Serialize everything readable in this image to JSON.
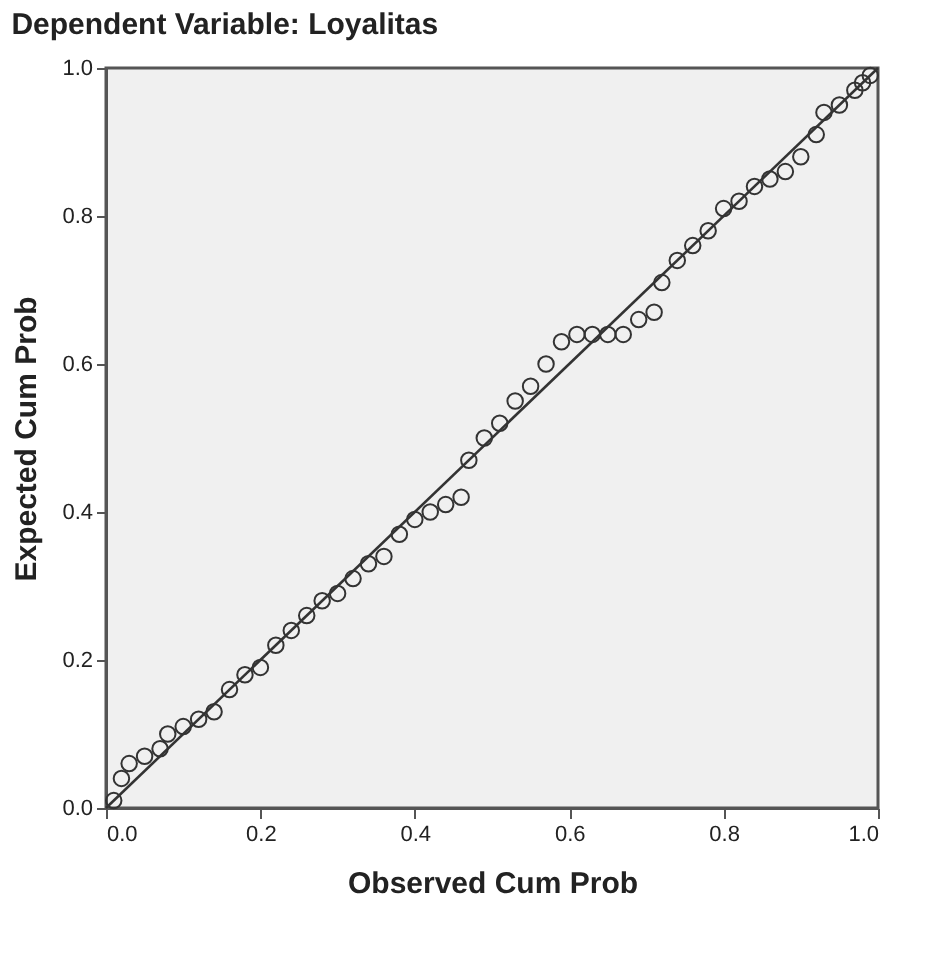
{
  "chart_data": {
    "type": "scatter",
    "title": "Dependent Variable: Loyalitas",
    "xlabel": "Observed Cum Prob",
    "ylabel": "Expected Cum Prob",
    "xlim": [
      0,
      1
    ],
    "ylim": [
      0,
      1
    ],
    "xticks": [
      {
        "value": 0,
        "label": "0.0"
      },
      {
        "value": 0.2,
        "label": "0.2"
      },
      {
        "value": 0.4,
        "label": "0.4"
      },
      {
        "value": 0.6,
        "label": "0.6"
      },
      {
        "value": 0.8,
        "label": "0.8"
      },
      {
        "value": 1,
        "label": "1.0"
      }
    ],
    "yticks": [
      {
        "value": 0,
        "label": "0.0"
      },
      {
        "value": 0.2,
        "label": "0.2"
      },
      {
        "value": 0.4,
        "label": "0.4"
      },
      {
        "value": 0.6,
        "label": "0.6"
      },
      {
        "value": 0.8,
        "label": "0.8"
      },
      {
        "value": 1,
        "label": "1.0"
      }
    ],
    "grid": false,
    "series": [
      {
        "type": "scatter",
        "marker": "circle",
        "color": "#333333",
        "x": [
          0.01,
          0.02,
          0.03,
          0.05,
          0.07,
          0.08,
          0.1,
          0.12,
          0.14,
          0.16,
          0.18,
          0.2,
          0.22,
          0.24,
          0.26,
          0.28,
          0.3,
          0.32,
          0.34,
          0.36,
          0.38,
          0.4,
          0.42,
          0.44,
          0.46,
          0.47,
          0.49,
          0.51,
          0.53,
          0.55,
          0.57,
          0.59,
          0.61,
          0.63,
          0.65,
          0.67,
          0.69,
          0.71,
          0.72,
          0.74,
          0.76,
          0.78,
          0.8,
          0.82,
          0.84,
          0.86,
          0.88,
          0.9,
          0.92,
          0.93,
          0.95,
          0.97,
          0.98,
          0.99
        ],
        "values": [
          0.01,
          0.04,
          0.06,
          0.07,
          0.08,
          0.1,
          0.11,
          0.12,
          0.13,
          0.16,
          0.18,
          0.19,
          0.22,
          0.24,
          0.26,
          0.28,
          0.29,
          0.31,
          0.33,
          0.34,
          0.37,
          0.39,
          0.4,
          0.41,
          0.42,
          0.47,
          0.5,
          0.52,
          0.55,
          0.57,
          0.6,
          0.63,
          0.64,
          0.64,
          0.64,
          0.64,
          0.66,
          0.67,
          0.71,
          0.74,
          0.76,
          0.78,
          0.81,
          0.82,
          0.84,
          0.85,
          0.86,
          0.88,
          0.91,
          0.94,
          0.95,
          0.97,
          0.98,
          0.99
        ]
      },
      {
        "type": "line",
        "marker": "none",
        "color": "#333333",
        "x": [
          0,
          1
        ],
        "values": [
          0,
          1
        ]
      }
    ]
  }
}
